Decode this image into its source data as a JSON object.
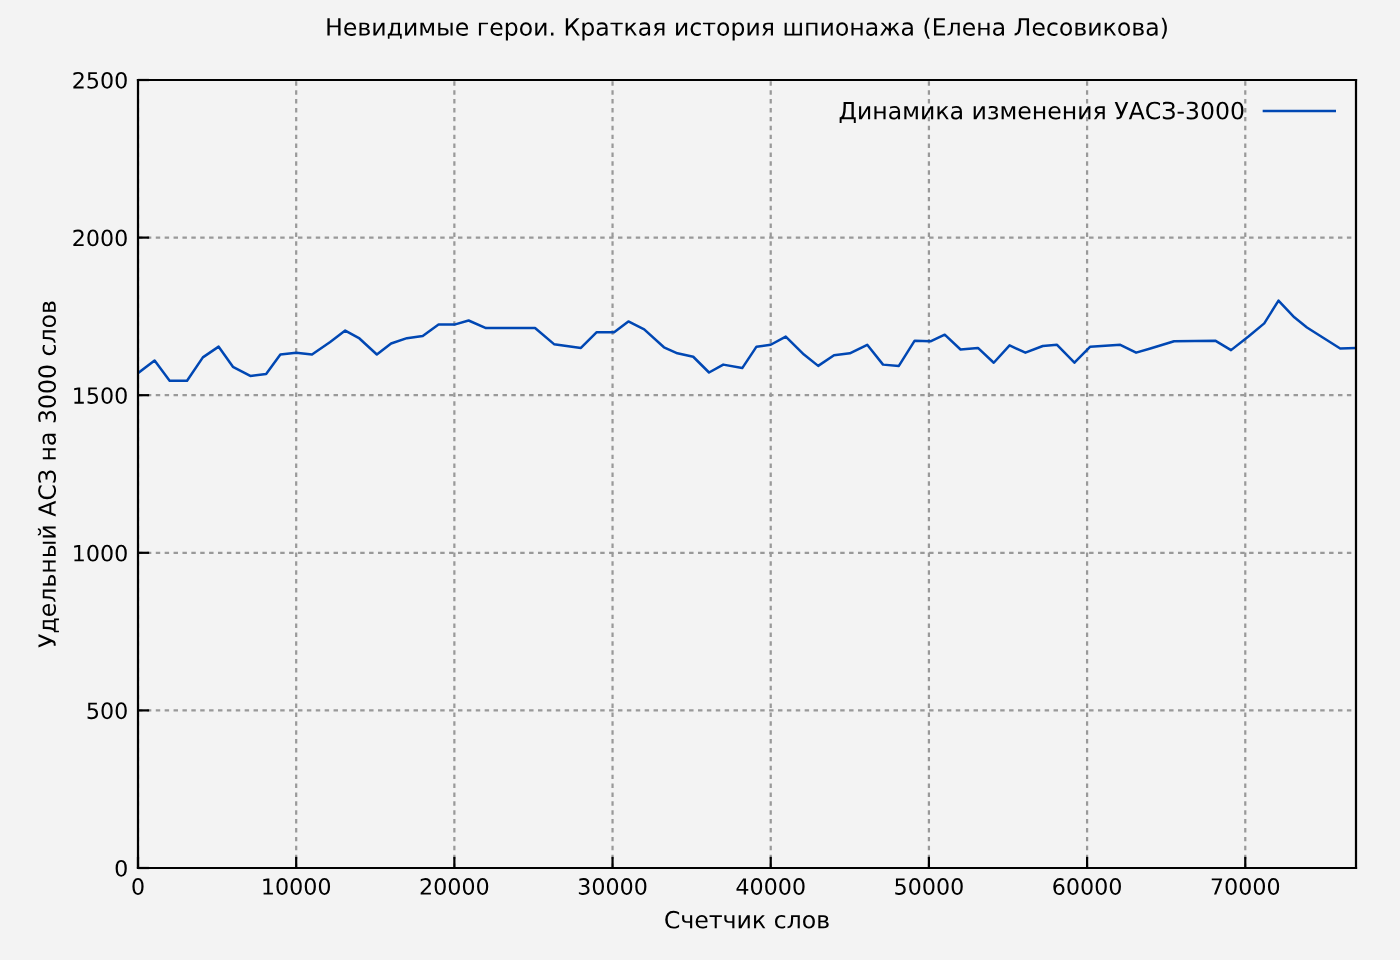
{
  "chart_data": {
    "type": "line",
    "title": "Невидимые герои. Краткая история шпионажа (Елена Лесовикова)",
    "xlabel": "Счетчик слов",
    "ylabel": "Удельный АСЗ на 3000 слов",
    "series": [
      {
        "name": "Динамика изменения УАСЗ-3000",
        "color": "#0047b3",
        "x": [
          0,
          1050,
          2000,
          3100,
          4100,
          5100,
          6000,
          7100,
          8100,
          9000,
          10000,
          11000,
          12150,
          13100,
          14000,
          15100,
          16000,
          17000,
          18000,
          19000,
          20000,
          20900,
          22000,
          25100,
          26300,
          28000,
          29000,
          30100,
          31000,
          32000,
          33250,
          34100,
          35100,
          36100,
          37000,
          38200,
          39100,
          40000,
          40950,
          42100,
          43000,
          44000,
          45000,
          46100,
          47100,
          48100,
          49100,
          50100,
          51000,
          52000,
          53100,
          54100,
          55100,
          56100,
          57200,
          58100,
          59200,
          60200,
          62100,
          63100,
          64000,
          65500,
          68100,
          69100,
          70200,
          71200,
          72100,
          73100,
          73900,
          75000,
          76000,
          77000
        ],
        "values": [
          1570,
          1610,
          1546,
          1546,
          1620,
          1654,
          1590,
          1561,
          1567,
          1629,
          1635,
          1629,
          1669,
          1705,
          1680,
          1629,
          1664,
          1681,
          1688,
          1724,
          1724,
          1737,
          1713,
          1713,
          1662,
          1650,
          1700,
          1700,
          1734,
          1709,
          1652,
          1633,
          1622,
          1572,
          1597,
          1586,
          1654,
          1660,
          1686,
          1629,
          1593,
          1627,
          1633,
          1660,
          1597,
          1593,
          1673,
          1671,
          1692,
          1645,
          1650,
          1603,
          1658,
          1635,
          1656,
          1660,
          1603,
          1654,
          1660,
          1635,
          1648,
          1671,
          1673,
          1643,
          1686,
          1728,
          1800,
          1747,
          1715,
          1680,
          1648,
          1650
        ]
      }
    ],
    "xlim": [
      0,
      77000
    ],
    "ylim": [
      0,
      2500
    ],
    "xticks": [
      0,
      10000,
      20000,
      30000,
      40000,
      50000,
      60000,
      70000
    ],
    "yticks": [
      0,
      500,
      1000,
      1500,
      2000,
      2500
    ],
    "grid": true,
    "legend": "top right",
    "marker": "none",
    "line_style": "solid"
  }
}
